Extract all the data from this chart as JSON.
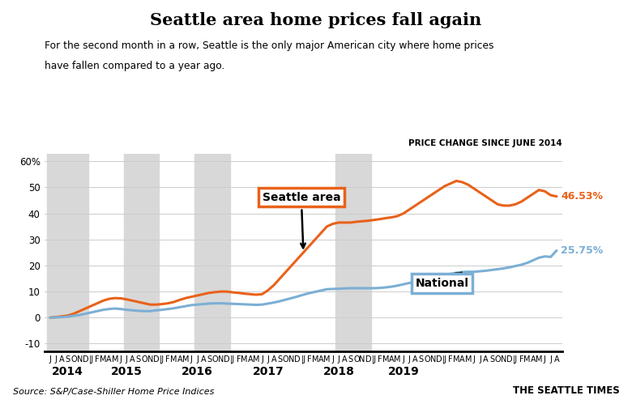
{
  "title": "Seattle area home prices fall again",
  "subtitle_line1": "For the second month in a row, Seattle is the only major American city where home prices",
  "subtitle_line2": "have fallen compared to a year ago.",
  "right_label": "PRICE CHANGE SINCE JUNE 2014",
  "source": "Source: S&P/Case-Shiller Home Price Indices",
  "logo": "THE SEATTLE TIMES",
  "seattle_final_label": "46.53%",
  "national_final_label": "25.75%",
  "seattle_color": "#e8621a",
  "national_color": "#7bafd4",
  "background_color": "#ffffff",
  "shaded_color": "#d8d8d8",
  "ylim": [
    -13,
    63
  ],
  "yticks": [
    -10,
    0,
    10,
    20,
    30,
    40,
    50,
    60
  ],
  "ytick_labels": [
    "-10",
    "0",
    "10",
    "20",
    "30",
    "40",
    "50",
    "60%"
  ],
  "seattle_data": [
    0.0,
    0.2,
    0.5,
    0.8,
    1.5,
    2.5,
    3.5,
    4.5,
    5.5,
    6.5,
    7.2,
    7.5,
    7.4,
    7.0,
    6.5,
    6.0,
    5.5,
    5.0,
    5.0,
    5.2,
    5.5,
    6.0,
    6.8,
    7.5,
    8.0,
    8.5,
    9.0,
    9.5,
    9.8,
    10.0,
    10.0,
    9.7,
    9.5,
    9.2,
    9.0,
    8.8,
    9.0,
    10.5,
    12.5,
    15.0,
    17.5,
    20.0,
    22.5,
    25.0,
    27.5,
    30.0,
    32.5,
    35.0,
    36.0,
    36.5,
    36.5,
    36.5,
    36.8,
    37.0,
    37.2,
    37.5,
    37.8,
    38.2,
    38.5,
    39.0,
    40.0,
    41.5,
    43.0,
    44.5,
    46.0,
    47.5,
    49.0,
    50.5,
    51.5,
    52.5,
    52.0,
    51.0,
    49.5,
    48.0,
    46.5,
    45.0,
    43.5,
    43.0,
    43.0,
    43.5,
    44.5,
    46.0,
    47.5,
    49.0,
    48.5,
    47.0,
    46.53
  ],
  "national_data": [
    0.0,
    0.1,
    0.2,
    0.4,
    0.7,
    1.0,
    1.5,
    2.0,
    2.5,
    3.0,
    3.3,
    3.5,
    3.3,
    3.0,
    2.8,
    2.6,
    2.5,
    2.5,
    2.8,
    3.0,
    3.3,
    3.6,
    4.0,
    4.4,
    4.8,
    5.0,
    5.2,
    5.4,
    5.5,
    5.5,
    5.4,
    5.3,
    5.2,
    5.1,
    5.0,
    4.9,
    5.0,
    5.4,
    5.8,
    6.3,
    6.9,
    7.5,
    8.1,
    8.8,
    9.4,
    9.9,
    10.4,
    10.9,
    11.0,
    11.1,
    11.2,
    11.3,
    11.3,
    11.3,
    11.3,
    11.3,
    11.4,
    11.6,
    11.9,
    12.3,
    12.8,
    13.3,
    13.8,
    14.3,
    14.8,
    15.3,
    15.8,
    16.3,
    16.8,
    17.2,
    17.5,
    17.6,
    17.6,
    17.8,
    18.0,
    18.3,
    18.6,
    18.9,
    19.3,
    19.8,
    20.3,
    21.0,
    22.0,
    23.0,
    23.5,
    23.3,
    25.75
  ]
}
